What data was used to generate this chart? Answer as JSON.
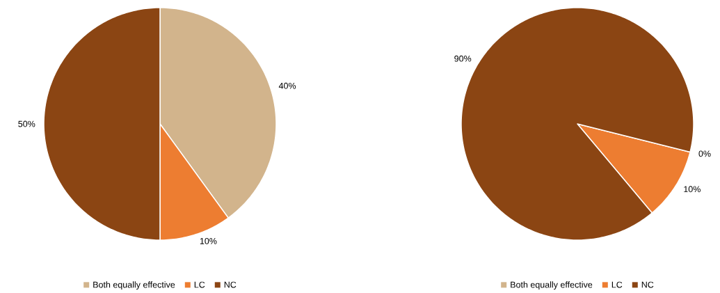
{
  "chart_data": [
    {
      "type": "pie",
      "categories": [
        "Both equally effective",
        "LC",
        "NC"
      ],
      "values": [
        40,
        10,
        50
      ],
      "colors": [
        "#d2b48c",
        "#ed7d31",
        "#8b4513"
      ],
      "value_labels": [
        "40%",
        "10%",
        "50%"
      ],
      "legend": "bottom"
    },
    {
      "type": "pie",
      "categories": [
        "Both equally effective",
        "LC",
        "NC"
      ],
      "values": [
        0,
        10,
        90
      ],
      "colors": [
        "#d2b48c",
        "#ed7d31",
        "#8b4513"
      ],
      "value_labels": [
        "0%",
        "10%",
        "90%"
      ],
      "legend": "bottom"
    }
  ]
}
